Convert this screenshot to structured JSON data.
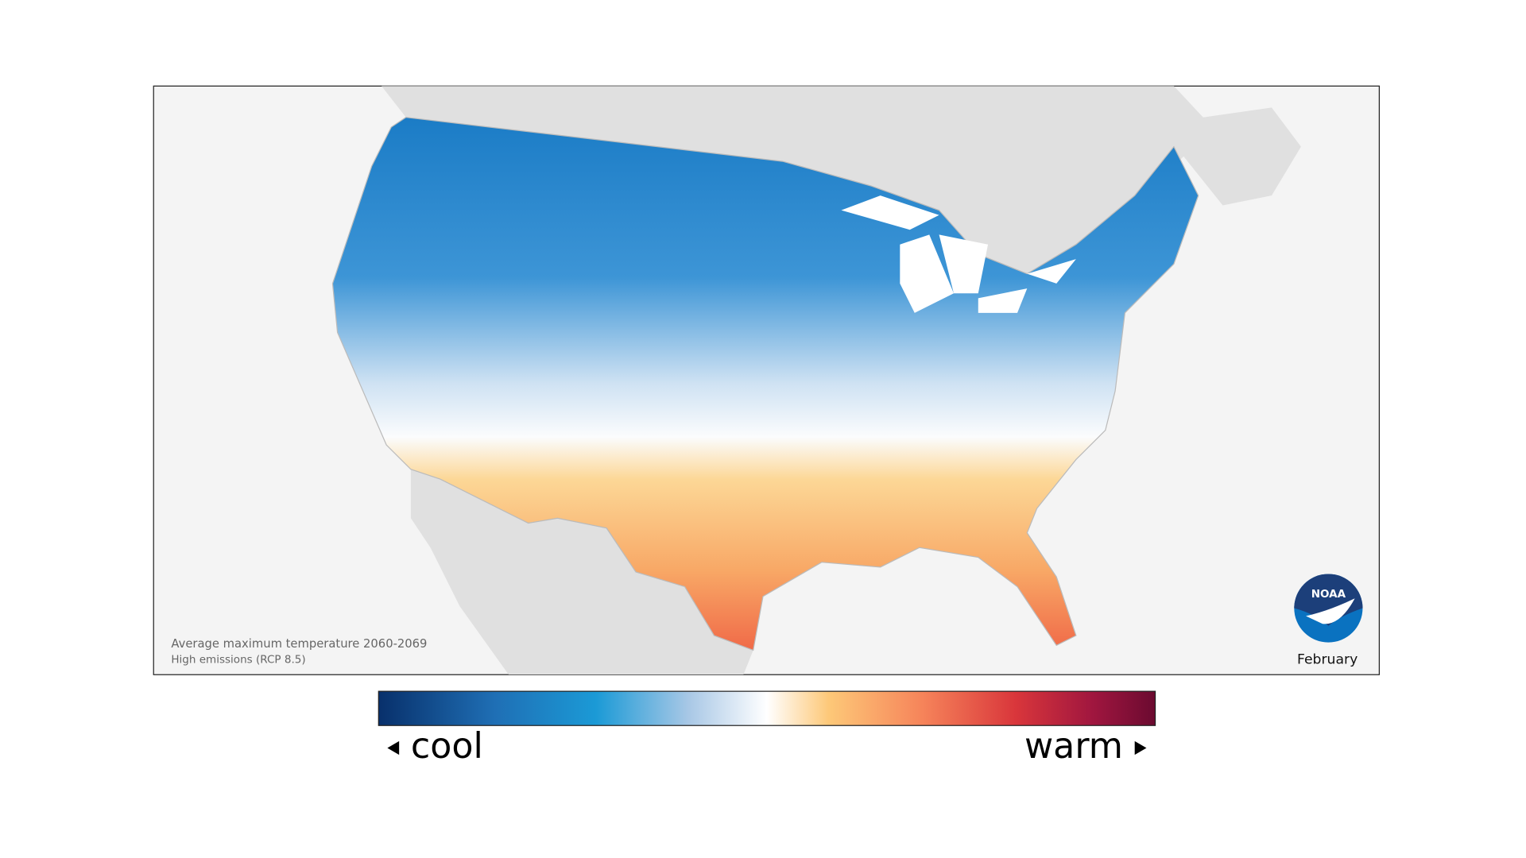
{
  "map": {
    "caption": "Average maximum temperature 2060-2069",
    "scenario": "High emissions (RCP 8.5)",
    "month": "February",
    "logo": "NOAA"
  },
  "legend": {
    "low_label": "cool",
    "high_label": "warm"
  }
}
